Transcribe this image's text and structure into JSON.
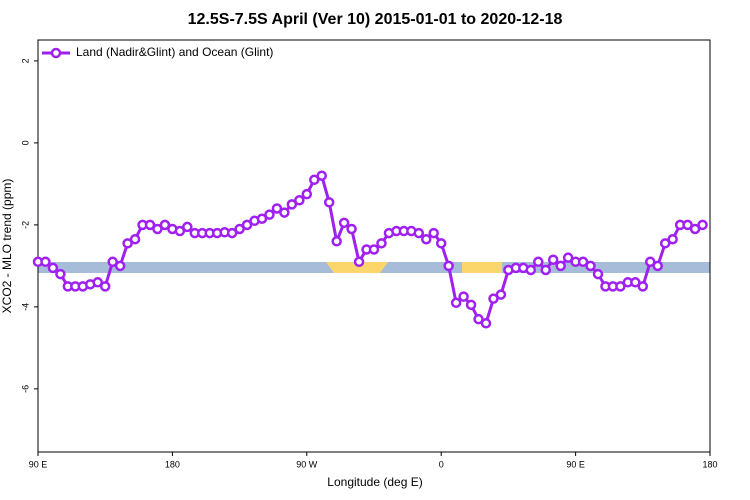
{
  "chart_data": {
    "type": "line",
    "title": "12.5S-7.5S April (Ver 10)   2015-01-01 to 2020-12-18",
    "x_label": "Longitude (deg E)",
    "y_label": "XCO2 - MLO trend (ppm)",
    "x": [
      90,
      95,
      100,
      105,
      110,
      115,
      120,
      125,
      130,
      135,
      140,
      145,
      150,
      155,
      160,
      165,
      170,
      175,
      180,
      185,
      190,
      195,
      200,
      205,
      210,
      215,
      220,
      225,
      230,
      235,
      240,
      245,
      250,
      255,
      260,
      265,
      270,
      275,
      280,
      285,
      290,
      295,
      300,
      305,
      310,
      315,
      320,
      325,
      330,
      335,
      340,
      345,
      350,
      355,
      360,
      365,
      370,
      375,
      380,
      385,
      390,
      395,
      400,
      405,
      410,
      415,
      420,
      425,
      430,
      435,
      440,
      445,
      450,
      455,
      460,
      465,
      470,
      475,
      480,
      485,
      490,
      495,
      500,
      505,
      510,
      515,
      520,
      525,
      530,
      535
    ],
    "series": [
      {
        "name": "Land (Nadir&Glint) and Ocean (Glint)",
        "color": "#a020f0",
        "values": [
          -2.9,
          -2.9,
          -3.05,
          -3.2,
          -3.5,
          -3.5,
          -3.5,
          -3.45,
          -3.4,
          -3.5,
          -2.9,
          -3.0,
          -2.45,
          -2.35,
          -2.0,
          -2.0,
          -2.1,
          -2.0,
          -2.1,
          -2.15,
          -2.05,
          -2.2,
          -2.2,
          -2.2,
          -2.2,
          -2.18,
          -2.2,
          -2.1,
          -2.0,
          -1.9,
          -1.85,
          -1.75,
          -1.6,
          -1.7,
          -1.5,
          -1.4,
          -1.25,
          -0.9,
          -0.8,
          -1.45,
          -2.4,
          -1.95,
          -2.1,
          -2.9,
          -2.6,
          -2.6,
          -2.45,
          -2.2,
          -2.15,
          -2.15,
          -2.15,
          -2.2,
          -2.35,
          -2.2,
          -2.45,
          -3.0,
          -3.9,
          -3.75,
          -3.95,
          -4.3,
          -4.4,
          -3.8,
          -3.7,
          -3.1,
          -3.05,
          -3.05,
          -3.1,
          -2.9,
          -3.1,
          -2.85,
          -3.0,
          -2.8,
          -2.9,
          -2.9,
          -3.0,
          -3.2,
          -3.5,
          -3.5,
          -3.5,
          -3.4,
          -3.4,
          -3.5,
          -2.9,
          -3.0,
          -2.45,
          -2.35,
          -2.0,
          -2.0,
          -2.1,
          -2.0
        ]
      }
    ],
    "xlim": [
      90,
      540
    ],
    "xticks": [
      {
        "value": 90,
        "label": "90 E"
      },
      180,
      {
        "value": 270,
        "label": "90 W"
      },
      {
        "value": 360,
        "label": "0"
      },
      {
        "value": 450,
        "label": "90 E"
      },
      {
        "value": 540,
        "label": "180"
      }
    ],
    "ylim": [
      -7.54,
      2.51
    ],
    "yticks": [
      2,
      0,
      -2,
      -4,
      -6
    ],
    "legend": "top-left"
  }
}
